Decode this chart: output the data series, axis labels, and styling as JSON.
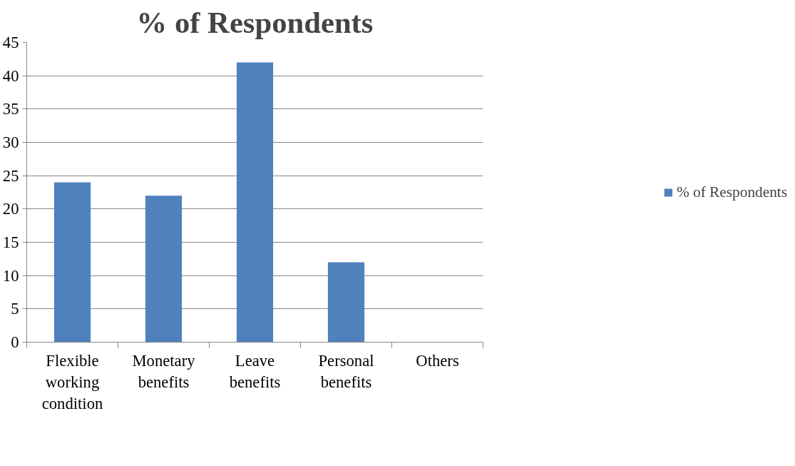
{
  "chart_data": {
    "type": "bar",
    "title": "% of Respondents",
    "categories": [
      "Flexible working condition",
      "Monetary benefits",
      "Leave benefits",
      "Personal benefits",
      "Others"
    ],
    "series": [
      {
        "name": "% of Respondents",
        "color": "#4f81bd",
        "values": [
          24,
          22,
          42,
          12,
          0
        ]
      }
    ],
    "ylim": [
      0,
      45
    ],
    "yticks": [
      0,
      5,
      10,
      15,
      20,
      25,
      30,
      35,
      40,
      45
    ],
    "grid": "y",
    "legend": "right"
  }
}
